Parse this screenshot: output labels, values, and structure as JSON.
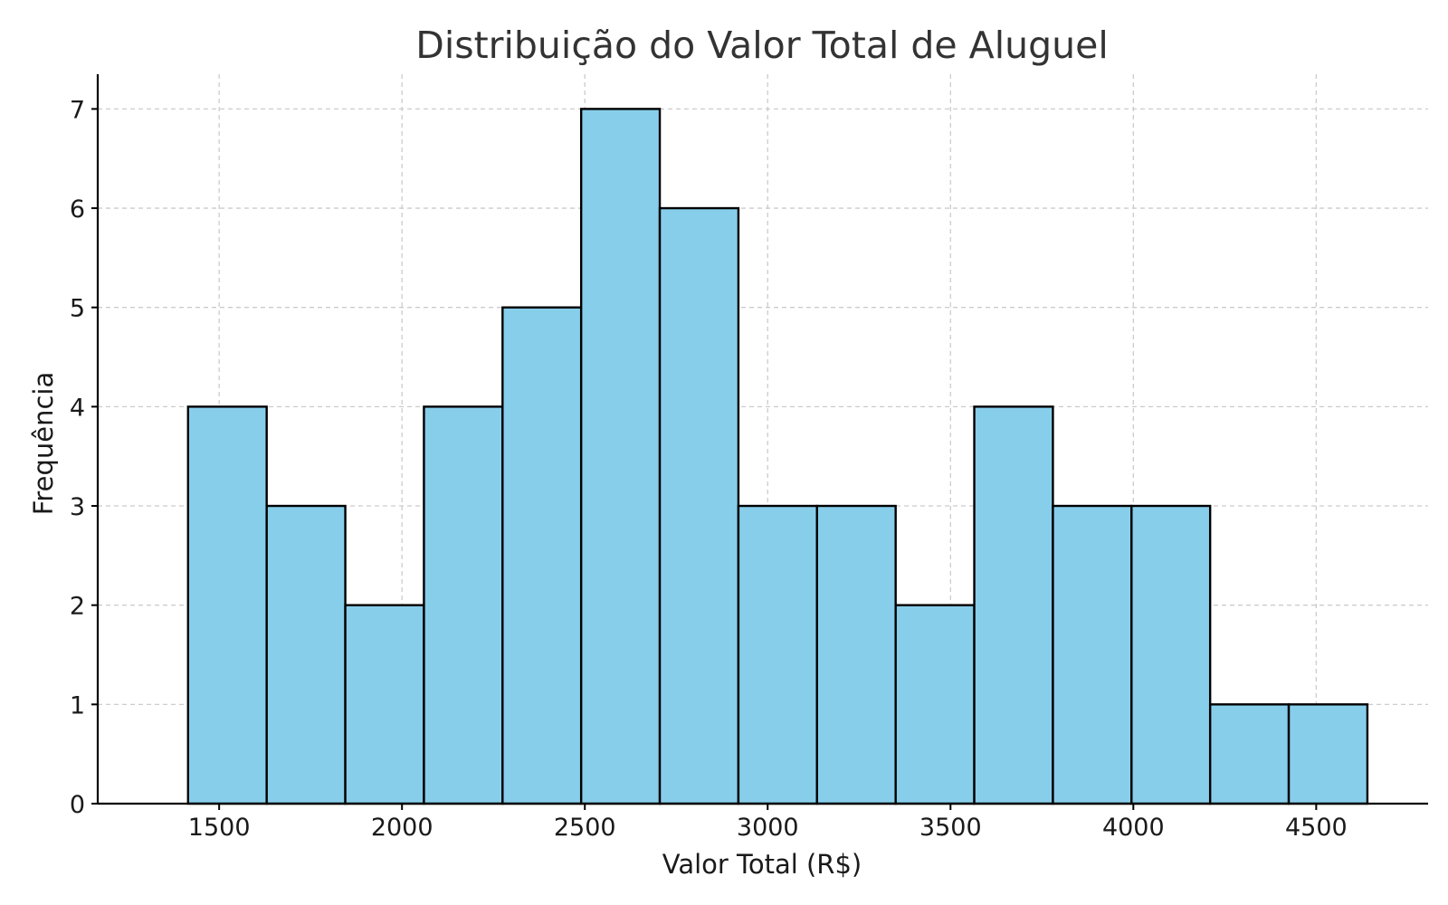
{
  "chart_data": {
    "type": "bar",
    "title": "Distribuição do Valor Total de Aluguel",
    "xlabel": "Valor Total (R$)",
    "ylabel": "Frequência",
    "bin_edges": [
      1415,
      1630,
      1845,
      2060,
      2275,
      2490,
      2705,
      2920,
      3135,
      3350,
      3565,
      3780,
      3995,
      4210,
      4425,
      4640
    ],
    "values": [
      4,
      3,
      2,
      4,
      5,
      7,
      6,
      3,
      3,
      2,
      4,
      3,
      3,
      1,
      1
    ],
    "xticks": [
      1500,
      2000,
      2500,
      3000,
      3500,
      4000,
      4500
    ],
    "yticks": [
      0,
      1,
      2,
      3,
      4,
      5,
      6,
      7
    ],
    "xlim": [
      1168,
      4806
    ],
    "ylim": [
      0,
      7.35
    ],
    "grid": true,
    "bar_color": "#87CEEB",
    "edge_color": "#000000"
  }
}
